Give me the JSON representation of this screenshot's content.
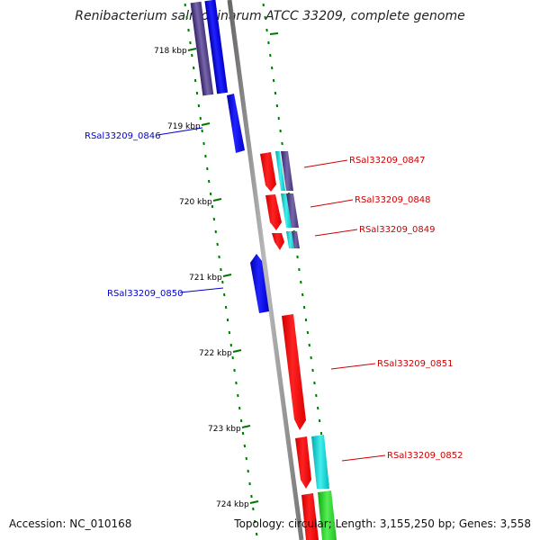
{
  "title": "Renibacterium salmoninarum ATCC 33209, complete genome",
  "footer": {
    "accession_label": "Accession:",
    "accession": "NC_010168",
    "topology_label": "Topology:",
    "topology": "circular",
    "length_label": "Length:",
    "length": "3,155,250 bp",
    "genes_label": "Genes:",
    "genes": "3,558"
  },
  "ticks": [
    {
      "label": "718 kbp"
    },
    {
      "label": "719 kbp"
    },
    {
      "label": "720 kbp"
    },
    {
      "label": "721 kbp"
    },
    {
      "label": "722 kbp"
    },
    {
      "label": "723 kbp"
    },
    {
      "label": "724 kbp"
    }
  ],
  "genes": [
    {
      "id": "RSal33209_0846",
      "strand": "reverse",
      "color": "#0000cc"
    },
    {
      "id": "RSal33209_0847",
      "strand": "forward",
      "color": "#cc0000"
    },
    {
      "id": "RSal33209_0848",
      "strand": "forward",
      "color": "#cc0000"
    },
    {
      "id": "RSal33209_0849",
      "strand": "forward",
      "color": "#cc0000"
    },
    {
      "id": "RSal33209_0850",
      "strand": "reverse",
      "color": "#0000cc"
    },
    {
      "id": "RSal33209_0851",
      "strand": "forward",
      "color": "#cc0000"
    },
    {
      "id": "RSal33209_0852",
      "strand": "forward",
      "color": "#cc0000"
    }
  ],
  "colors": {
    "backbone": "#808080",
    "tick": "#007700",
    "forward": "#ff0000",
    "reverse": "#0000ff",
    "cog_teal": "#00cccc",
    "cog_purple": "#554488",
    "cog_green": "#22cc22"
  }
}
